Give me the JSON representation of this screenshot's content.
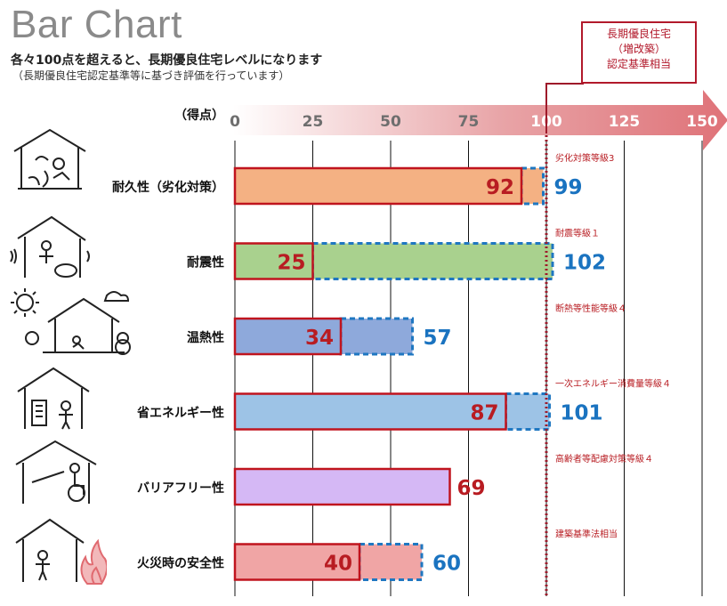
{
  "title": "Bar Chart",
  "subtitle": "各々100点を超えると、長期優良住宅レベルになります",
  "note": "（長期優良住宅認定基準等に基づき評価を行っています）",
  "callout": {
    "lines": [
      "長期優良住宅",
      "（増改築）",
      "認定基準相当"
    ]
  },
  "colors": {
    "existing_border": "#c0141e",
    "improved_border": "#1f77c1",
    "threshold_line": "#9e1a2a",
    "existing_value_text": "#b81c22",
    "improved_value_text": "#1a73c0"
  },
  "chart_data": {
    "type": "bar",
    "orientation": "horizontal",
    "axis_title": "（得点）",
    "xlim": [
      0,
      150
    ],
    "ticks": [
      0,
      25,
      50,
      75,
      100,
      125,
      150
    ],
    "threshold": 100,
    "categories": [
      {
        "label": "耐久性（劣化対策）",
        "standard": "劣化対策等級3",
        "value": 92,
        "improved": 99,
        "fill": "#f4b183",
        "icon": "house-decay-icon"
      },
      {
        "label": "耐震性",
        "standard": "耐震等級１",
        "value": 25,
        "improved": 102,
        "fill": "#a9d18e",
        "icon": "house-earthquake-icon"
      },
      {
        "label": "温熱性",
        "standard": "断熱等性能等級４",
        "value": 34,
        "improved": 57,
        "fill": "#8ea9db",
        "icon": "house-weather-icon"
      },
      {
        "label": "省エネルギー性",
        "standard": "一次エネルギー消費量等級４",
        "value": 87,
        "improved": 101,
        "fill": "#9dc3e6",
        "icon": "house-energy-icon"
      },
      {
        "label": "バリアフリー性",
        "standard": "高齢者等配慮対策等級４",
        "value": 69,
        "improved": null,
        "fill": "#d5b8f5",
        "icon": "house-wheelchair-icon"
      },
      {
        "label": "火災時の安全性",
        "standard": "建築基準法相当",
        "value": 40,
        "improved": 60,
        "fill": "#f0a5a5",
        "icon": "house-fire-icon"
      }
    ]
  }
}
